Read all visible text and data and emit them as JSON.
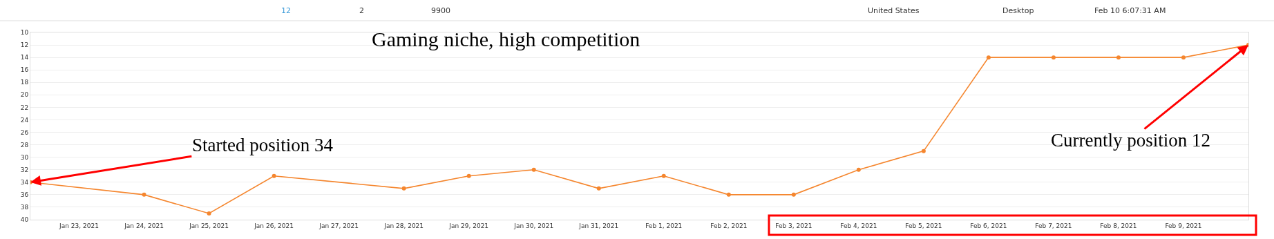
{
  "chart_data": {
    "type": "line",
    "title": "Gaming niche, high competition",
    "x": [
      "2021-01-22T06:00",
      "2021-01-24",
      "2021-01-25",
      "2021-01-26",
      "2021-01-28",
      "2021-01-29",
      "2021-01-30",
      "2021-01-31",
      "2021-02-01",
      "2021-02-02",
      "2021-02-03",
      "2021-02-04",
      "2021-02-05",
      "2021-02-06",
      "2021-02-07",
      "2021-02-08",
      "2021-02-09",
      "2021-02-10"
    ],
    "series": [
      {
        "color": "#f5862e",
        "values": [
          34,
          36,
          39,
          33,
          35,
          33,
          32,
          35,
          33,
          36,
          36,
          32,
          29,
          14,
          14,
          14,
          14,
          12
        ]
      }
    ],
    "xlim": [
      "2021-01-22T06:00",
      "2021-02-10"
    ],
    "xticks": [
      {
        "value": "2021-01-23",
        "label": "Jan 23, 2021"
      },
      {
        "value": "2021-01-24",
        "label": "Jan 24, 2021"
      },
      {
        "value": "2021-01-25",
        "label": "Jan 25, 2021"
      },
      {
        "value": "2021-01-26",
        "label": "Jan 26, 2021"
      },
      {
        "value": "2021-01-27",
        "label": "Jan 27, 2021"
      },
      {
        "value": "2021-01-28",
        "label": "Jan 28, 2021"
      },
      {
        "value": "2021-01-29",
        "label": "Jan 29, 2021"
      },
      {
        "value": "2021-01-30",
        "label": "Jan 30, 2021"
      },
      {
        "value": "2021-01-31",
        "label": "Jan 31, 2021"
      },
      {
        "value": "2021-02-01",
        "label": "Feb 1, 2021"
      },
      {
        "value": "2021-02-02",
        "label": "Feb 2, 2021"
      },
      {
        "value": "2021-02-03",
        "label": "Feb 3, 2021"
      },
      {
        "value": "2021-02-04",
        "label": "Feb 4, 2021"
      },
      {
        "value": "2021-02-05",
        "label": "Feb 5, 2021"
      },
      {
        "value": "2021-02-06",
        "label": "Feb 6, 2021"
      },
      {
        "value": "2021-02-07",
        "label": "Feb 7, 2021"
      },
      {
        "value": "2021-02-08",
        "label": "Feb 8, 2021"
      },
      {
        "value": "2021-02-09",
        "label": "Feb 9, 2021"
      }
    ],
    "ylim": [
      40,
      10
    ],
    "yticks": [
      10,
      12,
      14,
      16,
      18,
      20,
      22,
      24,
      26,
      28,
      30,
      32,
      34,
      36,
      38,
      40
    ],
    "grid": "y",
    "marker": "circle",
    "line_style": "solid",
    "annotations": [
      {
        "text": "Started position 34",
        "x": "2021-01-22T06:00",
        "y": 34
      },
      {
        "text": "Currently position 12",
        "x": "2021-02-10",
        "y": 12
      },
      "12",
      "2",
      "9900",
      "United States",
      "Desktop",
      "Feb 10 6:07:31 AM"
    ]
  }
}
